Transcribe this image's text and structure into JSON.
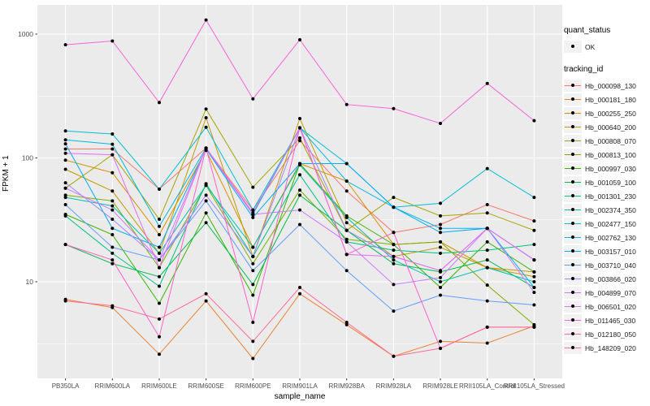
{
  "chart_data": {
    "type": "line",
    "title": "",
    "xlabel": "sample_name",
    "ylabel": "FPKM + 1",
    "x_categories": [
      "PB350LA",
      "RRIM600LA",
      "RRIM600LE",
      "RRIM600SE",
      "RRIM600PE",
      "RRIM901LA",
      "RRIM928BA",
      "RRIM928LA",
      "RRIM928LE",
      "RRII105LA_Control",
      "RRII105LA_Stressed"
    ],
    "y_scale": "log10",
    "y_tick_labels": [
      "1000",
      "100",
      "10"
    ],
    "y_tick_values": [
      1000,
      100,
      10
    ],
    "y_minor_values": [
      316.2,
      31.62,
      3.162
    ],
    "ylim_approx": [
      1.7,
      1700
    ],
    "grid": "on",
    "legend_position": "right",
    "panel_bg": "#EBEBEB",
    "grid_color": "#FFFFFF",
    "tick_label_color": "#4D4D4D",
    "point_color": "#000000",
    "legend": {
      "quant_status_title": "quant_status",
      "quant_status_items": [
        {
          "label": "OK",
          "symbol": "black-point"
        }
      ],
      "tracking_id_title": "tracking_id"
    },
    "series": [
      {
        "name": "Hb_000098_130",
        "color": "#F8766D",
        "values": [
          118,
          118,
          56,
          120,
          38,
          138,
          54,
          25,
          29,
          42,
          31
        ]
      },
      {
        "name": "Hb_000181_180",
        "color": "#EA8331",
        "values": [
          7.2,
          6.2,
          2.6,
          7,
          2.4,
          8,
          4.5,
          2.5,
          3.3,
          3.2,
          4.4
        ]
      },
      {
        "name": "Hb_000255_250",
        "color": "#D89000",
        "values": [
          96,
          76,
          24,
          115,
          19,
          90,
          65,
          20,
          21,
          13,
          12
        ]
      },
      {
        "name": "Hb_000640_200",
        "color": "#C09B00",
        "values": [
          81,
          54,
          17,
          211,
          16,
          208,
          30,
          16,
          19,
          13,
          11
        ]
      },
      {
        "name": "Hb_000808_070",
        "color": "#A3A500",
        "values": [
          57,
          106,
          32,
          248,
          58,
          145,
          26,
          48,
          34,
          36,
          26
        ]
      },
      {
        "name": "Hb_000813_100",
        "color": "#7CAE00",
        "values": [
          50,
          45,
          13,
          60,
          14,
          55,
          22,
          20,
          21,
          9.4,
          4.5
        ]
      },
      {
        "name": "Hb_000997_030",
        "color": "#39B600",
        "values": [
          35,
          24,
          6.7,
          36,
          7.8,
          90,
          34,
          20,
          9,
          21,
          12
        ]
      },
      {
        "name": "Hb_001059_100",
        "color": "#00BB4E",
        "values": [
          20,
          14,
          11,
          30,
          9.5,
          50,
          26,
          14,
          12,
          15,
          9
        ]
      },
      {
        "name": "Hb_001301_230",
        "color": "#00C087",
        "values": [
          34,
          17,
          9.2,
          62,
          16,
          73,
          21,
          18,
          17,
          18,
          20
        ]
      },
      {
        "name": "Hb_002374_350",
        "color": "#00C0B2",
        "values": [
          48,
          41,
          17,
          60,
          19,
          88,
          33,
          15,
          10,
          13,
          10
        ]
      },
      {
        "name": "Hb_002477_150",
        "color": "#00BFD4",
        "values": [
          165,
          156,
          56,
          177,
          38,
          175,
          90,
          40,
          43,
          82,
          48
        ]
      },
      {
        "name": "Hb_002762_130",
        "color": "#00B8E5",
        "values": [
          140,
          129,
          28,
          120,
          35,
          175,
          65,
          40,
          27,
          27,
          15
        ]
      },
      {
        "name": "Hb_003157_010",
        "color": "#00ACFC",
        "values": [
          130,
          27,
          19,
          118,
          33,
          90,
          90,
          40,
          25,
          27,
          9
        ]
      },
      {
        "name": "Hb_003710_040",
        "color": "#619CFF",
        "values": [
          42,
          19,
          15,
          45,
          12.3,
          29,
          12.3,
          5.8,
          7.8,
          7,
          6.5
        ]
      },
      {
        "name": "Hb_003866_020",
        "color": "#A186FF",
        "values": [
          63,
          32,
          15,
          50,
          16,
          175,
          26,
          16,
          12.3,
          27,
          15
        ]
      },
      {
        "name": "Hb_004899_070",
        "color": "#CD79FF",
        "values": [
          57,
          38,
          15,
          120,
          35,
          38,
          21,
          9.5,
          10.8,
          27,
          8.2
        ]
      },
      {
        "name": "Hb_006501_020",
        "color": "#E76BF3",
        "values": [
          109,
          106,
          13,
          120,
          36,
          175,
          16.6,
          16,
          12.3,
          27,
          15
        ]
      },
      {
        "name": "Hb_011465_030",
        "color": "#F862DD",
        "values": [
          820,
          880,
          280,
          1300,
          300,
          900,
          270,
          250,
          190,
          400,
          200
        ]
      },
      {
        "name": "Hb_012180_050",
        "color": "#FF61C9",
        "values": [
          20,
          15,
          3.6,
          120,
          4.7,
          175,
          16.6,
          25,
          2.9,
          4.3,
          4.3
        ]
      },
      {
        "name": "Hb_148209_020",
        "color": "#FF6A98",
        "values": [
          7,
          6.4,
          5,
          8,
          3.3,
          9,
          4.7,
          2.5,
          2.9,
          4.3,
          4.3
        ]
      }
    ]
  }
}
